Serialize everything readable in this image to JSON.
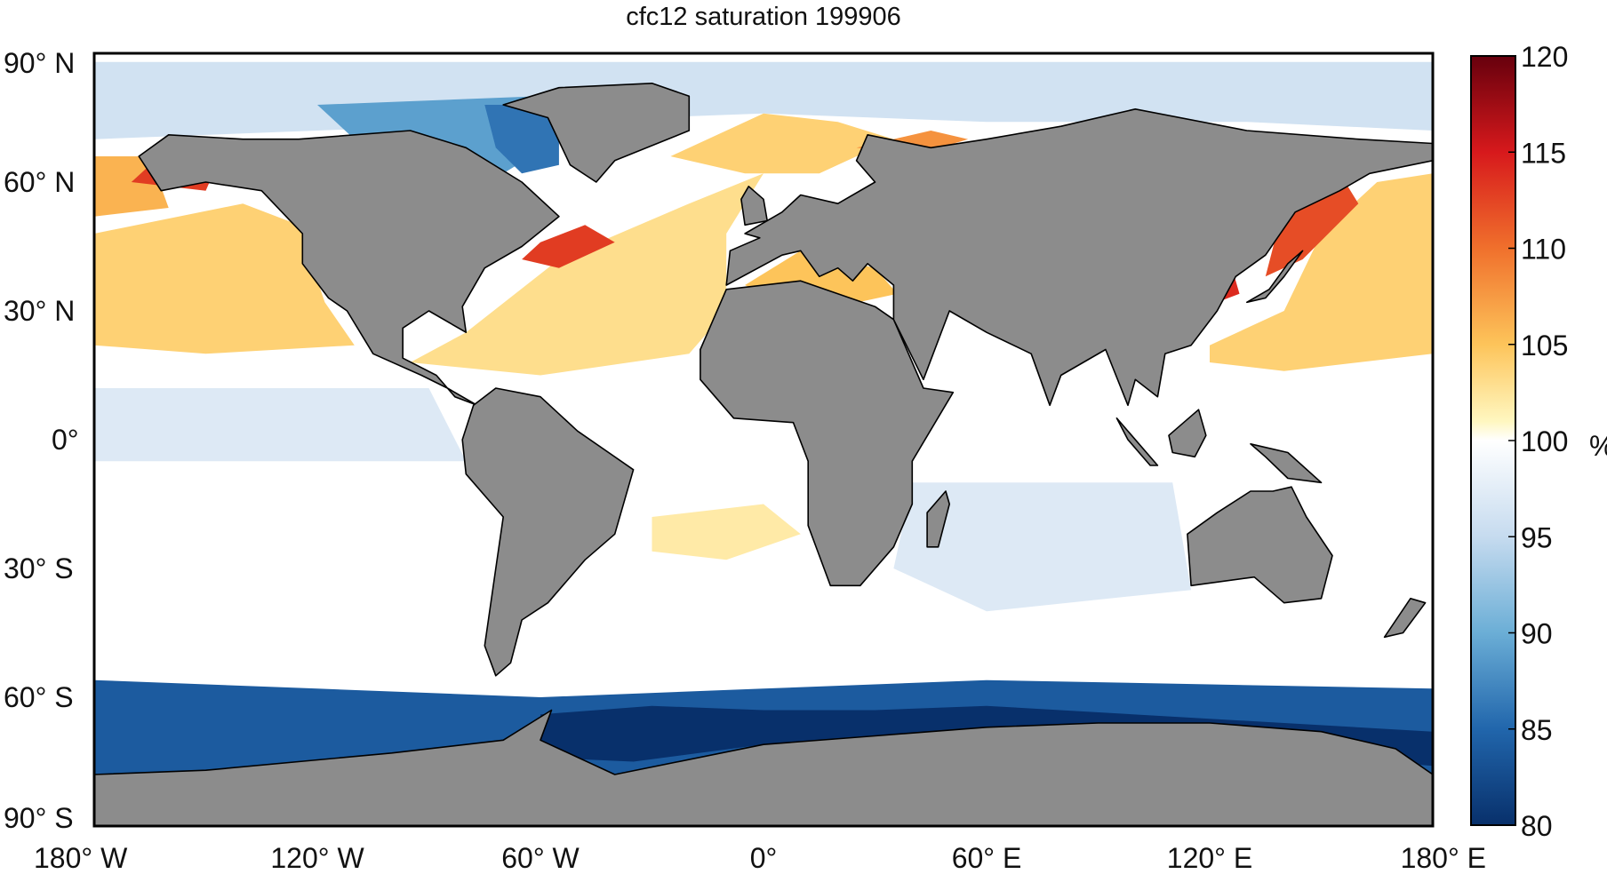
{
  "title": "cfc12 saturation 199906",
  "map": {
    "lat_labels": [
      {
        "lat": 90,
        "text": "90° N"
      },
      {
        "lat": 60,
        "text": "60° N"
      },
      {
        "lat": 30,
        "text": "30° N"
      },
      {
        "lat": 0,
        "text": "0°"
      },
      {
        "lat": -30,
        "text": "30° S"
      },
      {
        "lat": -60,
        "text": "60° S"
      },
      {
        "lat": -90,
        "text": "90° S"
      }
    ],
    "lon_labels": [
      {
        "lon": -180,
        "text": "180° W"
      },
      {
        "lon": -120,
        "text": "120° W"
      },
      {
        "lon": -60,
        "text": "60° W"
      },
      {
        "lon": 0,
        "text": "0°"
      },
      {
        "lon": 60,
        "text": "60° E"
      },
      {
        "lon": 120,
        "text": "120° E"
      },
      {
        "lon": 180,
        "text": "180° E"
      }
    ],
    "ocean_color": "#ffffff",
    "land_color": "#8c8c8c",
    "coast_color": "#000000"
  },
  "colorbar": {
    "unit": "%",
    "min": 80,
    "max": 120,
    "ticks": [
      {
        "value": 120,
        "text": "120"
      },
      {
        "value": 115,
        "text": "115"
      },
      {
        "value": 110,
        "text": "110"
      },
      {
        "value": 105,
        "text": "105"
      },
      {
        "value": 100,
        "text": "100"
      },
      {
        "value": 95,
        "text": "95"
      },
      {
        "value": 90,
        "text": "90"
      },
      {
        "value": 85,
        "text": "85"
      },
      {
        "value": 80,
        "text": "80"
      }
    ],
    "color_stops": [
      {
        "value": 80,
        "color": "#08306b"
      },
      {
        "value": 85,
        "color": "#2166ac"
      },
      {
        "value": 90,
        "color": "#6baed6"
      },
      {
        "value": 95,
        "color": "#c6dbef"
      },
      {
        "value": 100,
        "color": "#ffffff"
      },
      {
        "value": 101,
        "color": "#fff7c0"
      },
      {
        "value": 105,
        "color": "#fdc45a"
      },
      {
        "value": 110,
        "color": "#f0702c"
      },
      {
        "value": 115,
        "color": "#d7191c"
      },
      {
        "value": 120,
        "color": "#67000d"
      }
    ]
  },
  "regions": [
    {
      "name": "southern-ocean-band",
      "value": 84,
      "poly": [
        [
          -180,
          -56
        ],
        [
          -120,
          -58
        ],
        [
          -60,
          -60
        ],
        [
          0,
          -58
        ],
        [
          60,
          -56
        ],
        [
          120,
          -57
        ],
        [
          180,
          -58
        ],
        [
          180,
          -79
        ],
        [
          -180,
          -79
        ]
      ]
    },
    {
      "name": "weddell-sea",
      "value": 80,
      "poly": [
        [
          -60,
          -64
        ],
        [
          -30,
          -62
        ],
        [
          0,
          -63
        ],
        [
          30,
          -63
        ],
        [
          60,
          -62
        ],
        [
          120,
          -65
        ],
        [
          180,
          -68
        ],
        [
          180,
          -76
        ],
        [
          120,
          -72
        ],
        [
          60,
          -70
        ],
        [
          0,
          -71
        ],
        [
          -35,
          -75
        ],
        [
          -60,
          -74
        ]
      ]
    },
    {
      "name": "arctic-ocean",
      "value": 96,
      "poly": [
        [
          -180,
          88
        ],
        [
          180,
          88
        ],
        [
          180,
          72
        ],
        [
          130,
          74
        ],
        [
          60,
          74
        ],
        [
          0,
          76
        ],
        [
          -60,
          74
        ],
        [
          -120,
          72
        ],
        [
          -180,
          70
        ]
      ]
    },
    {
      "name": "canadian-archipelago",
      "value": 89,
      "poly": [
        [
          -120,
          78
        ],
        [
          -60,
          80
        ],
        [
          -55,
          70
        ],
        [
          -70,
          62
        ],
        [
          -90,
          58
        ],
        [
          -95,
          66
        ],
        [
          -110,
          70
        ]
      ]
    },
    {
      "name": "baffin-bay",
      "value": 86,
      "poly": [
        [
          -75,
          78
        ],
        [
          -55,
          78
        ],
        [
          -55,
          64
        ],
        [
          -65,
          62
        ],
        [
          -72,
          68
        ]
      ]
    },
    {
      "name": "north-pacific-warm",
      "value": 104,
      "poly": [
        [
          -180,
          48
        ],
        [
          -140,
          55
        ],
        [
          -125,
          50
        ],
        [
          -118,
          32
        ],
        [
          -110,
          22
        ],
        [
          -150,
          20
        ],
        [
          -180,
          22
        ]
      ]
    },
    {
      "name": "nw-pacific-warm",
      "value": 104,
      "poly": [
        [
          120,
          22
        ],
        [
          140,
          30
        ],
        [
          150,
          48
        ],
        [
          165,
          60
        ],
        [
          180,
          62
        ],
        [
          180,
          20
        ],
        [
          140,
          16
        ],
        [
          120,
          18
        ]
      ]
    },
    {
      "name": "bering-sea",
      "value": 106,
      "poly": [
        [
          -180,
          52
        ],
        [
          -160,
          54
        ],
        [
          -165,
          66
        ],
        [
          -180,
          66
        ]
      ]
    },
    {
      "name": "alaska-coast",
      "value": 113,
      "poly": [
        [
          -170,
          60
        ],
        [
          -150,
          58
        ],
        [
          -148,
          62
        ],
        [
          -165,
          64
        ]
      ]
    },
    {
      "name": "okhotsk-japan",
      "value": 112,
      "poly": [
        [
          135,
          38
        ],
        [
          145,
          42
        ],
        [
          160,
          55
        ],
        [
          155,
          62
        ],
        [
          142,
          60
        ],
        [
          138,
          48
        ]
      ]
    },
    {
      "name": "yellow-sea",
      "value": 114,
      "poly": [
        [
          118,
          36
        ],
        [
          126,
          40
        ],
        [
          128,
          34
        ],
        [
          122,
          32
        ]
      ]
    },
    {
      "name": "north-atlantic-warm",
      "value": 103,
      "poly": [
        [
          -80,
          25
        ],
        [
          -55,
          42
        ],
        [
          -20,
          55
        ],
        [
          0,
          62
        ],
        [
          -10,
          48
        ],
        [
          -10,
          30
        ],
        [
          -20,
          20
        ],
        [
          -60,
          15
        ],
        [
          -95,
          18
        ]
      ]
    },
    {
      "name": "labrador-grand-banks",
      "value": 113,
      "poly": [
        [
          -60,
          46
        ],
        [
          -48,
          50
        ],
        [
          -40,
          46
        ],
        [
          -55,
          40
        ],
        [
          -65,
          42
        ]
      ]
    },
    {
      "name": "norwegian-sea",
      "value": 104,
      "poly": [
        [
          -25,
          66
        ],
        [
          0,
          76
        ],
        [
          20,
          74
        ],
        [
          35,
          70
        ],
        [
          15,
          62
        ],
        [
          -5,
          62
        ]
      ]
    },
    {
      "name": "barents-sea",
      "value": 108,
      "poly": [
        [
          25,
          68
        ],
        [
          45,
          72
        ],
        [
          55,
          70
        ],
        [
          40,
          66
        ]
      ]
    },
    {
      "name": "mediterranean",
      "value": 105,
      "poly": [
        [
          -5,
          36
        ],
        [
          10,
          44
        ],
        [
          30,
          40
        ],
        [
          36,
          34
        ],
        [
          20,
          31
        ],
        [
          0,
          34
        ]
      ]
    },
    {
      "name": "equatorial-atlantic-warm",
      "value": 102,
      "poly": [
        [
          -30,
          -18
        ],
        [
          0,
          -15
        ],
        [
          10,
          -22
        ],
        [
          -10,
          -28
        ],
        [
          -30,
          -26
        ]
      ]
    },
    {
      "name": "equatorial-pacific-cool",
      "value": 97,
      "poly": [
        [
          -180,
          12
        ],
        [
          -90,
          12
        ],
        [
          -80,
          -5
        ],
        [
          -180,
          -5
        ]
      ]
    },
    {
      "name": "indian-ocean-cool",
      "value": 97,
      "poly": [
        [
          40,
          -10
        ],
        [
          110,
          -10
        ],
        [
          115,
          -35
        ],
        [
          60,
          -40
        ],
        [
          35,
          -30
        ]
      ]
    }
  ],
  "land": [
    {
      "name": "north-america",
      "poly": [
        [
          -168,
          66
        ],
        [
          -160,
          71
        ],
        [
          -140,
          70
        ],
        [
          -125,
          70
        ],
        [
          -95,
          72
        ],
        [
          -80,
          68
        ],
        [
          -65,
          60
        ],
        [
          -55,
          52
        ],
        [
          -65,
          45
        ],
        [
          -75,
          40
        ],
        [
          -81,
          31
        ],
        [
          -80,
          25
        ],
        [
          -90,
          30
        ],
        [
          -97,
          26
        ],
        [
          -97,
          19
        ],
        [
          -88,
          15
        ],
        [
          -83,
          10
        ],
        [
          -77,
          8
        ],
        [
          -85,
          12
        ],
        [
          -92,
          15
        ],
        [
          -105,
          20
        ],
        [
          -112,
          30
        ],
        [
          -117,
          33
        ],
        [
          -124,
          41
        ],
        [
          -124,
          48
        ],
        [
          -135,
          58
        ],
        [
          -150,
          60
        ],
        [
          -162,
          58
        ],
        [
          -165,
          62
        ]
      ]
    },
    {
      "name": "greenland",
      "poly": [
        [
          -55,
          82
        ],
        [
          -30,
          83
        ],
        [
          -20,
          80
        ],
        [
          -20,
          72
        ],
        [
          -40,
          65
        ],
        [
          -45,
          60
        ],
        [
          -52,
          64
        ],
        [
          -58,
          75
        ],
        [
          -70,
          78
        ]
      ]
    },
    {
      "name": "south-america",
      "poly": [
        [
          -78,
          8
        ],
        [
          -72,
          12
        ],
        [
          -60,
          10
        ],
        [
          -50,
          2
        ],
        [
          -35,
          -7
        ],
        [
          -40,
          -22
        ],
        [
          -48,
          -28
        ],
        [
          -58,
          -38
        ],
        [
          -65,
          -42
        ],
        [
          -68,
          -52
        ],
        [
          -72,
          -55
        ],
        [
          -75,
          -48
        ],
        [
          -72,
          -30
        ],
        [
          -70,
          -18
        ],
        [
          -80,
          -8
        ],
        [
          -81,
          0
        ]
      ]
    },
    {
      "name": "africa",
      "poly": [
        [
          -17,
          21
        ],
        [
          -10,
          35
        ],
        [
          10,
          37
        ],
        [
          30,
          31
        ],
        [
          35,
          28
        ],
        [
          43,
          12
        ],
        [
          51,
          11
        ],
        [
          40,
          -5
        ],
        [
          40,
          -15
        ],
        [
          35,
          -25
        ],
        [
          26,
          -34
        ],
        [
          18,
          -34
        ],
        [
          12,
          -20
        ],
        [
          12,
          -5
        ],
        [
          8,
          4
        ],
        [
          -8,
          5
        ],
        [
          -17,
          14
        ]
      ]
    },
    {
      "name": "eurasia",
      "poly": [
        [
          -10,
          36
        ],
        [
          -9,
          44
        ],
        [
          -1,
          47
        ],
        [
          -5,
          48
        ],
        [
          5,
          53
        ],
        [
          10,
          57
        ],
        [
          20,
          55
        ],
        [
          30,
          60
        ],
        [
          25,
          65
        ],
        [
          28,
          71
        ],
        [
          45,
          68
        ],
        [
          60,
          70
        ],
        [
          80,
          73
        ],
        [
          100,
          77
        ],
        [
          130,
          72
        ],
        [
          160,
          70
        ],
        [
          180,
          69
        ],
        [
          180,
          65
        ],
        [
          163,
          62
        ],
        [
          155,
          58
        ],
        [
          143,
          53
        ],
        [
          135,
          43
        ],
        [
          127,
          38
        ],
        [
          122,
          30
        ],
        [
          115,
          22
        ],
        [
          108,
          20
        ],
        [
          106,
          10
        ],
        [
          100,
          14
        ],
        [
          98,
          8
        ],
        [
          92,
          21
        ],
        [
          80,
          15
        ],
        [
          77,
          8
        ],
        [
          72,
          20
        ],
        [
          60,
          25
        ],
        [
          50,
          30
        ],
        [
          43,
          14
        ],
        [
          35,
          28
        ],
        [
          35,
          36
        ],
        [
          28,
          41
        ],
        [
          24,
          37
        ],
        [
          20,
          40
        ],
        [
          15,
          38
        ],
        [
          10,
          44
        ],
        [
          5,
          43
        ]
      ]
    },
    {
      "name": "australia",
      "poly": [
        [
          114,
          -22
        ],
        [
          122,
          -17
        ],
        [
          131,
          -12
        ],
        [
          137,
          -12
        ],
        [
          142,
          -11
        ],
        [
          146,
          -18
        ],
        [
          153,
          -27
        ],
        [
          150,
          -37
        ],
        [
          140,
          -38
        ],
        [
          132,
          -32
        ],
        [
          115,
          -34
        ]
      ]
    },
    {
      "name": "antarctica",
      "poly": [
        [
          -180,
          -78
        ],
        [
          -150,
          -77
        ],
        [
          -100,
          -73
        ],
        [
          -70,
          -70
        ],
        [
          -57,
          -63
        ],
        [
          -60,
          -70
        ],
        [
          -40,
          -78
        ],
        [
          0,
          -71
        ],
        [
          30,
          -69
        ],
        [
          60,
          -67
        ],
        [
          90,
          -66
        ],
        [
          120,
          -66
        ],
        [
          150,
          -68
        ],
        [
          170,
          -72
        ],
        [
          180,
          -78
        ],
        [
          180,
          -90
        ],
        [
          -180,
          -90
        ]
      ]
    },
    {
      "name": "great-britain",
      "poly": [
        [
          -5,
          50
        ],
        [
          1,
          51
        ],
        [
          0,
          56
        ],
        [
          -4,
          59
        ],
        [
          -6,
          56
        ]
      ]
    },
    {
      "name": "madagascar",
      "poly": [
        [
          44,
          -25
        ],
        [
          47,
          -25
        ],
        [
          50,
          -15
        ],
        [
          49,
          -12
        ],
        [
          44,
          -17
        ]
      ]
    },
    {
      "name": "japan",
      "poly": [
        [
          130,
          32
        ],
        [
          136,
          35
        ],
        [
          141,
          41
        ],
        [
          145,
          44
        ],
        [
          140,
          38
        ],
        [
          135,
          33
        ]
      ]
    },
    {
      "name": "borneo",
      "poly": [
        [
          109,
          1
        ],
        [
          117,
          7
        ],
        [
          119,
          1
        ],
        [
          116,
          -4
        ],
        [
          110,
          -3
        ]
      ]
    },
    {
      "name": "sumatra",
      "poly": [
        [
          95,
          5
        ],
        [
          106,
          -6
        ],
        [
          104,
          -6
        ],
        [
          98,
          0
        ]
      ]
    },
    {
      "name": "new-guinea",
      "poly": [
        [
          131,
          -1
        ],
        [
          141,
          -3
        ],
        [
          150,
          -10
        ],
        [
          141,
          -9
        ],
        [
          135,
          -4
        ]
      ]
    },
    {
      "name": "new-zealand",
      "poly": [
        [
          167,
          -46
        ],
        [
          174,
          -37
        ],
        [
          178,
          -38
        ],
        [
          172,
          -45
        ]
      ]
    }
  ]
}
